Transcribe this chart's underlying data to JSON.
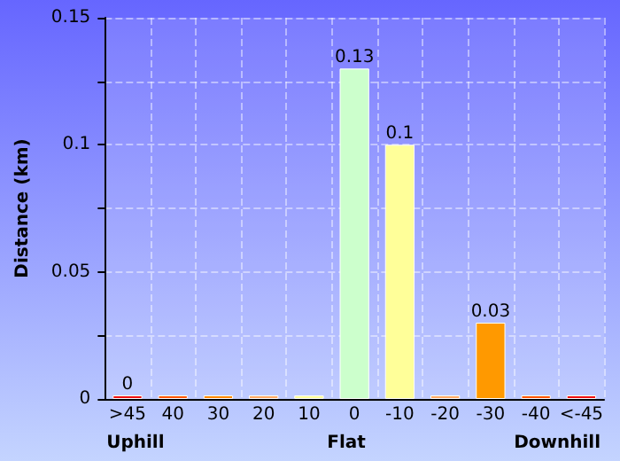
{
  "chart_data": {
    "type": "bar",
    "ylabel": "Distance (km)",
    "categories": [
      ">45",
      "40",
      "30",
      "20",
      "10",
      "0",
      "-10",
      "-20",
      "-30",
      "-40",
      "<-45"
    ],
    "values": [
      0,
      0,
      0,
      0,
      0,
      0.13,
      0.1,
      0,
      0.03,
      0,
      0
    ],
    "colors": [
      "#ee1111",
      "#ff5500",
      "#ff8800",
      "#ffaa66",
      "#ffff99",
      "#ccffcc",
      "#ffff99",
      "#ffaa66",
      "#ff9900",
      "#ff5500",
      "#ee1111"
    ],
    "value_labels": [
      "0",
      null,
      null,
      null,
      null,
      "0.13",
      "0.1",
      null,
      "0.03",
      null,
      null
    ],
    "ylim": [
      0,
      0.15
    ],
    "yticks": [
      0,
      {
        "value": 0.025,
        "label": null
      },
      0.05,
      {
        "value": 0.075,
        "label": null
      },
      0.1,
      {
        "value": 0.125,
        "label": null
      },
      0.15
    ],
    "annotations": [
      "Uphill",
      "Flat",
      "Downhill"
    ],
    "grid": true
  }
}
